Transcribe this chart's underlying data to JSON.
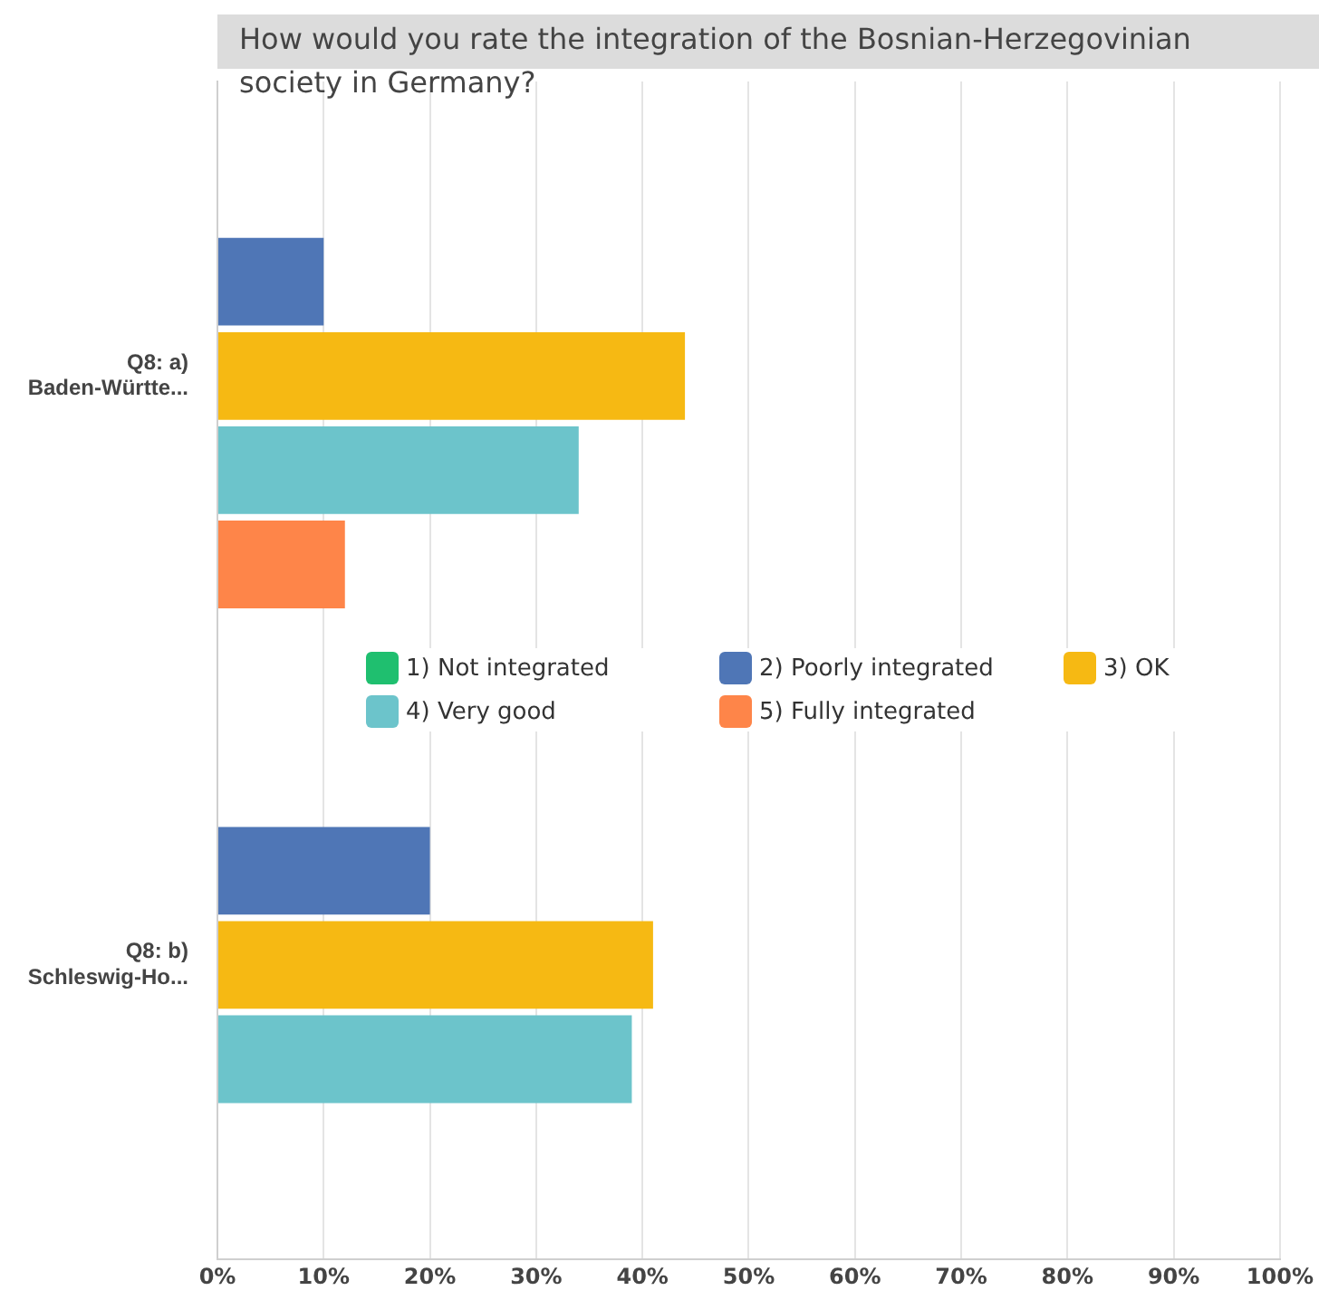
{
  "chart_data": {
    "type": "bar",
    "orientation": "horizontal",
    "title": "How would you rate the integration of the Bosnian-Herzegovinian society in Germany?",
    "categories": [
      "Q8: a)\nBaden-Württe...",
      "Q8: b)\nSchleswig-Ho..."
    ],
    "series": [
      {
        "name": "1) Not integrated",
        "color": "#1fbf6f",
        "values": [
          0,
          0
        ]
      },
      {
        "name": "2)  Poorly integrated",
        "color": "#4f76b6",
        "values": [
          10,
          20
        ]
      },
      {
        "name": "3) OK",
        "color": "#f6b913",
        "values": [
          44,
          41
        ]
      },
      {
        "name": "4) Very good",
        "color": "#6cc4cb",
        "values": [
          34,
          39
        ]
      },
      {
        "name": "5) Fully integrated",
        "color": "#fe8549",
        "values": [
          12,
          0
        ]
      }
    ],
    "xlim": [
      0,
      100
    ],
    "xticks": [
      {
        "value": 0,
        "label": "0%"
      },
      {
        "value": 10,
        "label": "10%"
      },
      {
        "value": 20,
        "label": "20%"
      },
      {
        "value": 30,
        "label": "30%"
      },
      {
        "value": 40,
        "label": "40%"
      },
      {
        "value": 50,
        "label": "50%"
      },
      {
        "value": 60,
        "label": "60%"
      },
      {
        "value": 70,
        "label": "70%"
      },
      {
        "value": 80,
        "label": "80%"
      },
      {
        "value": 90,
        "label": "90%"
      },
      {
        "value": 100,
        "label": "100%"
      }
    ],
    "grid": "x",
    "legend": "center"
  }
}
